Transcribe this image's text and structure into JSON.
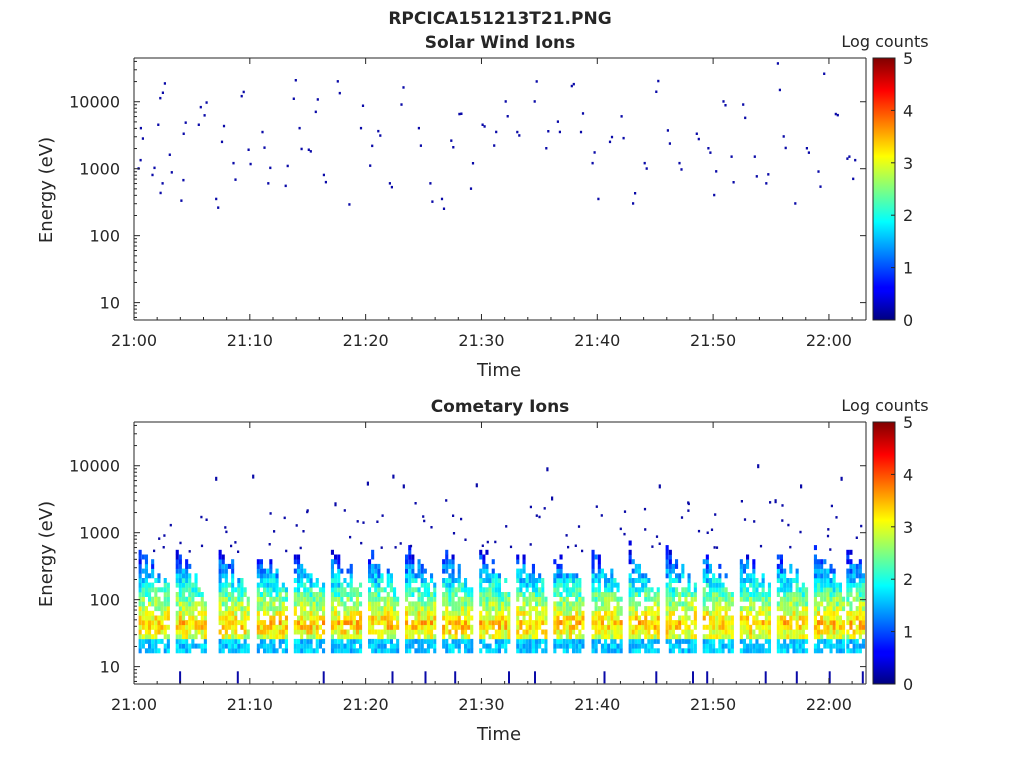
{
  "figure_title": "RPCICA151213T21.PNG",
  "chart_data": [
    {
      "type": "heatmap",
      "title": "Solar Wind Ions",
      "xlabel": "Time",
      "ylabel": "Energy (eV)",
      "x_ticks": [
        "21:00",
        "21:10",
        "21:20",
        "21:30",
        "21:40",
        "21:50",
        "22:00"
      ],
      "y_ticks": [
        "10",
        "100",
        "1000",
        "10000"
      ],
      "y_scale": "log",
      "x_range": [
        "21:00",
        "22:03"
      ],
      "y_range": [
        5.5,
        45000
      ],
      "colorbar": {
        "label": "Log counts",
        "range": [
          0,
          5
        ],
        "ticks": [
          "0",
          "1",
          "2",
          "3",
          "4",
          "5"
        ],
        "colormap": "jet"
      },
      "description_points": [
        {
          "t": 0.3,
          "e": 1000
        },
        {
          "t": 0.5,
          "e": 4000
        },
        {
          "t": 1.5,
          "e": 800
        },
        {
          "t": 2.0,
          "e": 4500
        },
        {
          "t": 2.2,
          "e": 430
        },
        {
          "t": 2.4,
          "e": 13500
        },
        {
          "t": 3.0,
          "e": 1600
        },
        {
          "t": 4.0,
          "e": 330
        },
        {
          "t": 4.2,
          "e": 3300
        },
        {
          "t": 5.5,
          "e": 4500
        },
        {
          "t": 6.0,
          "e": 6200
        },
        {
          "t": 7.0,
          "e": 350
        },
        {
          "t": 7.5,
          "e": 2500
        },
        {
          "t": 8.5,
          "e": 1200
        },
        {
          "t": 9.2,
          "e": 12000
        },
        {
          "t": 9.8,
          "e": 1900
        },
        {
          "t": 11.0,
          "e": 3500
        },
        {
          "t": 11.5,
          "e": 600
        },
        {
          "t": 13.0,
          "e": 550
        },
        {
          "t": 13.7,
          "e": 11000
        },
        {
          "t": 14.2,
          "e": 4000
        },
        {
          "t": 15.0,
          "e": 1900
        },
        {
          "t": 15.6,
          "e": 7000
        },
        {
          "t": 16.3,
          "e": 800
        },
        {
          "t": 17.5,
          "e": 20000
        },
        {
          "t": 18.5,
          "e": 290
        },
        {
          "t": 19.5,
          "e": 4000
        },
        {
          "t": 20.3,
          "e": 1100
        },
        {
          "t": 21.0,
          "e": 3600
        },
        {
          "t": 22.0,
          "e": 600
        },
        {
          "t": 23.0,
          "e": 9000
        },
        {
          "t": 24.5,
          "e": 4000
        },
        {
          "t": 25.5,
          "e": 600
        },
        {
          "t": 26.5,
          "e": 350
        },
        {
          "t": 27.3,
          "e": 2600
        },
        {
          "t": 28.0,
          "e": 6500
        },
        {
          "t": 29.0,
          "e": 500
        },
        {
          "t": 30.0,
          "e": 4500
        },
        {
          "t": 31.0,
          "e": 2200
        },
        {
          "t": 32.0,
          "e": 10000
        },
        {
          "t": 33.0,
          "e": 3500
        },
        {
          "t": 34.5,
          "e": 10000
        },
        {
          "t": 35.5,
          "e": 2000
        },
        {
          "t": 36.5,
          "e": 5000
        },
        {
          "t": 37.7,
          "e": 17000
        },
        {
          "t": 38.5,
          "e": 3500
        },
        {
          "t": 39.5,
          "e": 1200
        },
        {
          "t": 40.0,
          "e": 350
        },
        {
          "t": 41.0,
          "e": 2500
        },
        {
          "t": 42.0,
          "e": 6000
        },
        {
          "t": 43.0,
          "e": 300
        },
        {
          "t": 44.0,
          "e": 1200
        },
        {
          "t": 45.0,
          "e": 14000
        },
        {
          "t": 46.0,
          "e": 3700
        },
        {
          "t": 47.0,
          "e": 1200
        },
        {
          "t": 48.5,
          "e": 3300
        },
        {
          "t": 49.5,
          "e": 2000
        },
        {
          "t": 50.0,
          "e": 400
        },
        {
          "t": 50.8,
          "e": 10000
        },
        {
          "t": 51.5,
          "e": 1500
        },
        {
          "t": 52.5,
          "e": 9000
        },
        {
          "t": 53.5,
          "e": 1500
        },
        {
          "t": 54.5,
          "e": 600
        },
        {
          "t": 55.5,
          "e": 37000
        },
        {
          "t": 56.0,
          "e": 3000
        },
        {
          "t": 57.0,
          "e": 300
        },
        {
          "t": 58.0,
          "e": 2000
        },
        {
          "t": 59.0,
          "e": 900
        },
        {
          "t": 59.5,
          "e": 26000
        },
        {
          "t": 60.5,
          "e": 6500
        },
        {
          "t": 61.5,
          "e": 1400
        },
        {
          "t": 62.0,
          "e": 700
        }
      ],
      "max_log_counts": 1.0
    },
    {
      "type": "heatmap",
      "title": "Cometary Ions",
      "xlabel": "Time",
      "ylabel": "Energy (eV)",
      "x_ticks": [
        "21:00",
        "21:10",
        "21:20",
        "21:30",
        "21:40",
        "21:50",
        "22:00"
      ],
      "y_ticks": [
        "10",
        "100",
        "1000",
        "10000"
      ],
      "y_scale": "log",
      "x_range": [
        "21:00",
        "22:03"
      ],
      "y_range": [
        5.5,
        45000
      ],
      "colorbar": {
        "label": "Log counts",
        "range": [
          0,
          5
        ],
        "ticks": [
          "0",
          "1",
          "2",
          "3",
          "4",
          "5"
        ],
        "colormap": "jet"
      },
      "bursts_start_min": [
        0.4,
        3.6,
        7.3,
        10.6,
        13.8,
        17.0,
        20.2,
        23.4,
        26.6,
        29.8,
        33.0,
        36.2,
        39.5,
        42.7,
        45.9,
        49.1,
        52.3,
        55.5,
        58.7,
        61.5
      ],
      "burst_peak_energy_ev": [
        40,
        55
      ],
      "burst_peak_log_counts": [
        3.2,
        3.6
      ],
      "burst_top_energy_ev": [
        400,
        1000
      ]
    }
  ],
  "colors": {
    "axis": "#262626",
    "background": "#ffffff"
  }
}
